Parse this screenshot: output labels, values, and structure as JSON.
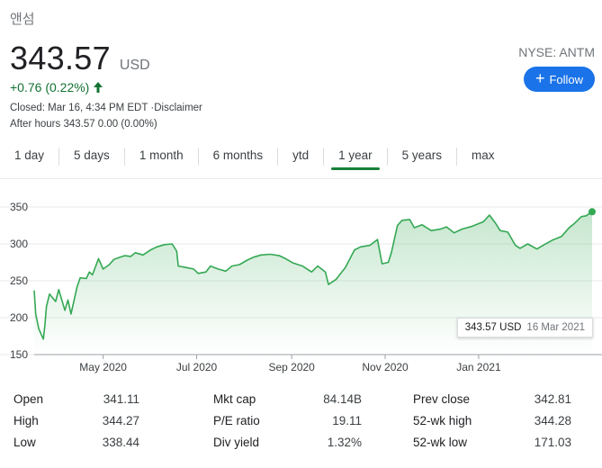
{
  "company_name": "앤섬",
  "price": "343.57",
  "currency": "USD",
  "exchange": "NYSE: ANTM",
  "follow_label": "Follow",
  "change": "+0.76 (0.22%)",
  "closed_text": "Closed: Mar 16, 4:34 PM EDT ·",
  "disclaimer": "Disclaimer",
  "after_hours": "After hours 343.57 0.00 (0.00%)",
  "tabs": [
    "1 day",
    "5 days",
    "1 month",
    "6 months",
    "ytd",
    "1 year",
    "5 years",
    "max"
  ],
  "active_tab": "1 year",
  "colors": {
    "positive": "#137333",
    "line": "#34a853",
    "accent": "#1a73e8"
  },
  "chart_data": {
    "type": "area",
    "ylim": [
      150,
      350
    ],
    "y_ticks": [
      "350",
      "300",
      "250",
      "200",
      "150"
    ],
    "x_tick_labels": [
      "May 2020",
      "Jul 2020",
      "Sep 2020",
      "Nov 2020",
      "Jan 2021"
    ],
    "x_range": [
      "2020-03-17",
      "2021-03-16"
    ],
    "x_tick_dates": [
      "2020-05-01",
      "2020-07-01",
      "2020-09-01",
      "2020-11-01",
      "2021-01-01"
    ],
    "series": [
      {
        "x": [
          "2020-03-17",
          "2020-03-18",
          "2020-03-19",
          "2020-03-20",
          "2020-03-23",
          "2020-03-24",
          "2020-03-25",
          "2020-03-27",
          "2020-03-31",
          "2020-04-02",
          "2020-04-06",
          "2020-04-08",
          "2020-04-10",
          "2020-04-14",
          "2020-04-16",
          "2020-04-20",
          "2020-04-22",
          "2020-04-24",
          "2020-04-28",
          "2020-05-01",
          "2020-05-05",
          "2020-05-08",
          "2020-05-12",
          "2020-05-15",
          "2020-05-19",
          "2020-05-22",
          "2020-05-27",
          "2020-06-01",
          "2020-06-05",
          "2020-06-10",
          "2020-06-15",
          "2020-06-18",
          "2020-06-19",
          "2020-06-24",
          "2020-06-29",
          "2020-07-02",
          "2020-07-07",
          "2020-07-10",
          "2020-07-15",
          "2020-07-20",
          "2020-07-24",
          "2020-07-29",
          "2020-08-03",
          "2020-08-07",
          "2020-08-12",
          "2020-08-18",
          "2020-08-24",
          "2020-08-28",
          "2020-09-02",
          "2020-09-08",
          "2020-09-14",
          "2020-09-18",
          "2020-09-23",
          "2020-09-25",
          "2020-09-30",
          "2020-10-06",
          "2020-10-12",
          "2020-10-16",
          "2020-10-22",
          "2020-10-27",
          "2020-10-30",
          "2020-11-03",
          "2020-11-05",
          "2020-11-09",
          "2020-11-12",
          "2020-11-17",
          "2020-11-20",
          "2020-11-25",
          "2020-12-01",
          "2020-12-07",
          "2020-12-11",
          "2020-12-16",
          "2020-12-21",
          "2020-12-28",
          "2021-01-04",
          "2021-01-08",
          "2021-01-12",
          "2021-01-15",
          "2021-01-20",
          "2021-01-25",
          "2021-01-28",
          "2021-02-02",
          "2021-02-08",
          "2021-02-12",
          "2021-02-18",
          "2021-02-24",
          "2021-03-01",
          "2021-03-04",
          "2021-03-09",
          "2021-03-12",
          "2021-03-16"
        ],
        "y": [
          237,
          205,
          195,
          185,
          171,
          190,
          215,
          232,
          222,
          238,
          210,
          224,
          205,
          242,
          254,
          253,
          262,
          258,
          280,
          266,
          272,
          279,
          282,
          284,
          283,
          288,
          285,
          292,
          296,
          299,
          300,
          290,
          270,
          268,
          266,
          260,
          262,
          270,
          266,
          263,
          270,
          272,
          278,
          282,
          285,
          286,
          284,
          280,
          274,
          270,
          262,
          270,
          262,
          245,
          252,
          268,
          292,
          296,
          298,
          306,
          273,
          275,
          288,
          325,
          332,
          333,
          322,
          326,
          318,
          320,
          323,
          315,
          320,
          324,
          330,
          339,
          328,
          318,
          316,
          298,
          294,
          300,
          293,
          298,
          305,
          310,
          322,
          327,
          337,
          338,
          343.57
        ]
      }
    ]
  },
  "tooltip": {
    "price": "343.57 USD",
    "date": "16 Mar 2021"
  },
  "stats": [
    {
      "label": "Open",
      "value": "341.11"
    },
    {
      "label": "High",
      "value": "344.27"
    },
    {
      "label": "Low",
      "value": "338.44"
    },
    {
      "label": "Mkt cap",
      "value": "84.14B"
    },
    {
      "label": "P/E ratio",
      "value": "19.11"
    },
    {
      "label": "Div yield",
      "value": "1.32%"
    },
    {
      "label": "Prev close",
      "value": "342.81"
    },
    {
      "label": "52-wk high",
      "value": "344.28"
    },
    {
      "label": "52-wk low",
      "value": "171.03"
    }
  ]
}
